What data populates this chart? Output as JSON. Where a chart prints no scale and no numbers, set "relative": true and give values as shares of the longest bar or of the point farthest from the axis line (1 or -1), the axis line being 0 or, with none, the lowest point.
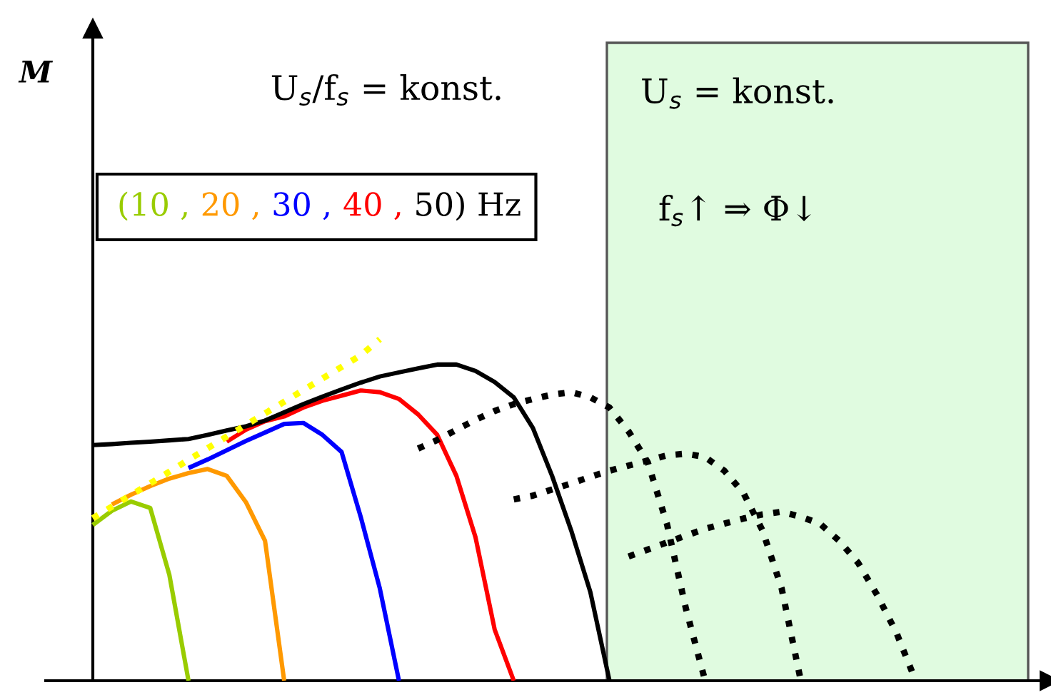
{
  "chart_data": {
    "type": "line",
    "relative": true,
    "legend_title": "Hz",
    "line_style": "solid",
    "marker": "none",
    "tick_labels": false,
    "categories": [
      null,
      null,
      null,
      null,
      null,
      null,
      null,
      null,
      null,
      null,
      null,
      null,
      null,
      null,
      null,
      null,
      null,
      null,
      null,
      null,
      null,
      null,
      null,
      null,
      null,
      null,
      null,
      null,
      null,
      null,
      null,
      null,
      null,
      null,
      null,
      null,
      null,
      null,
      null,
      null,
      null,
      null,
      null,
      null
    ],
    "annotations": [
      "U$_{s}$/f$_{s}$ = konst.",
      "U$_{s}$ = konst.",
      "f$_{s}$↑ ⇒ Φ↓",
      "M"
    ],
    "series": [
      {
        "name": "(10 ,",
        "color": "#99cc00",
        "values": [
          0.456,
          0.498,
          0.525,
          0.506,
          0.31,
          0,
          null,
          null,
          null,
          null,
          null,
          null,
          null,
          null,
          null,
          null,
          null,
          null,
          null,
          null,
          null,
          null,
          null,
          null,
          null,
          null,
          null,
          null,
          null,
          null,
          null,
          null,
          null,
          null,
          null,
          null,
          null,
          null,
          null,
          null,
          null,
          null,
          null,
          null
        ]
      },
      {
        "name": "20 ,",
        "color": "#ff9900",
        "values": [
          null,
          0.516,
          0.545,
          0.57,
          0.592,
          0.608,
          0.62,
          0.6,
          0.523,
          0.41,
          0,
          null,
          null,
          null,
          null,
          null,
          null,
          null,
          null,
          null,
          null,
          null,
          null,
          null,
          null,
          null,
          null,
          null,
          null,
          null,
          null,
          null,
          null,
          null,
          null,
          null,
          null,
          null,
          null,
          null,
          null,
          null,
          null,
          null
        ]
      },
      {
        "name": "30 ,",
        "color": "#0000ff",
        "values": [
          null,
          null,
          null,
          null,
          null,
          0.623,
          0.648,
          0.675,
          0.702,
          0.727,
          0.752,
          0.755,
          0.72,
          0.67,
          0.48,
          0.27,
          0,
          null,
          null,
          null,
          null,
          null,
          null,
          null,
          null,
          null,
          null,
          null,
          null,
          null,
          null,
          null,
          null,
          null,
          null,
          null,
          null,
          null,
          null,
          null,
          null,
          null,
          null,
          null
        ]
      },
      {
        "name": "40 ,",
        "color": "#ff0000",
        "values": [
          null,
          null,
          null,
          null,
          null,
          null,
          null,
          0.7,
          0.735,
          0.76,
          0.774,
          0.8,
          0.82,
          0.835,
          0.85,
          0.845,
          0.825,
          0.78,
          0.72,
          0.6,
          0.42,
          0.15,
          0,
          null,
          null,
          null,
          null,
          null,
          null,
          null,
          null,
          null,
          null,
          null,
          null,
          null,
          null,
          null,
          null,
          null,
          null,
          null,
          null,
          null
        ]
      },
      {
        "name": "50)",
        "color": "#000000",
        "values": [
          0.69,
          0.693,
          0.697,
          0.7,
          0.704,
          0.708,
          0.72,
          0.733,
          0.745,
          0.762,
          0.786,
          0.81,
          0.832,
          0.853,
          0.873,
          0.891,
          0.903,
          0.915,
          0.926,
          0.926,
          0.907,
          0.875,
          0.83,
          0.74,
          0.6,
          0.44,
          0.26,
          0,
          null,
          null,
          null,
          null,
          null,
          null,
          null,
          null,
          null,
          null,
          null,
          null,
          null,
          null,
          null,
          null
        ]
      },
      {
        "color": "#000000",
        "line_style": "dotted",
        "values": [
          null,
          null,
          null,
          null,
          null,
          null,
          null,
          null,
          null,
          null,
          null,
          null,
          null,
          null,
          null,
          null,
          null,
          0.68,
          0.705,
          0.735,
          0.764,
          0.79,
          0.81,
          0.825,
          0.838,
          0.845,
          0.83,
          0.8,
          0.73,
          0.64,
          0.46,
          0.21,
          0,
          null,
          null,
          null,
          null,
          null,
          null,
          null,
          null,
          null,
          null,
          null
        ]
      },
      {
        "color": "#000000",
        "line_style": "dotted",
        "values": [
          null,
          null,
          null,
          null,
          null,
          null,
          null,
          null,
          null,
          null,
          null,
          null,
          null,
          null,
          null,
          null,
          null,
          null,
          null,
          null,
          null,
          null,
          0.531,
          0.542,
          0.56,
          0.578,
          0.597,
          0.615,
          0.63,
          0.645,
          0.66,
          0.665,
          0.655,
          0.615,
          0.55,
          0.44,
          0.27,
          0,
          null,
          null,
          null,
          null,
          null,
          null
        ]
      },
      {
        "color": "#000000",
        "line_style": "dotted",
        "values": [
          null,
          null,
          null,
          null,
          null,
          null,
          null,
          null,
          null,
          null,
          null,
          null,
          null,
          null,
          null,
          null,
          null,
          null,
          null,
          null,
          null,
          null,
          null,
          null,
          null,
          null,
          null,
          null,
          0.364,
          0.384,
          0.405,
          0.425,
          0.445,
          0.46,
          0.475,
          0.487,
          0.495,
          0.48,
          0.46,
          0.41,
          0.345,
          0.25,
          0.14,
          0
        ]
      },
      {
        "color": "#ffff00",
        "line_style": "dotted",
        "values": [
          0.476,
          0.51,
          0.544,
          0.578,
          0.612,
          0.647,
          0.681,
          0.715,
          0.749,
          0.783,
          0.817,
          0.851,
          0.885,
          0.919,
          0.953,
          1.0,
          null,
          null,
          null,
          null,
          null,
          null,
          null,
          null,
          null,
          null,
          null,
          null,
          null,
          null,
          null,
          null,
          null,
          null,
          null,
          null,
          null,
          null,
          null,
          null,
          null,
          null,
          null,
          null
        ]
      }
    ]
  }
}
